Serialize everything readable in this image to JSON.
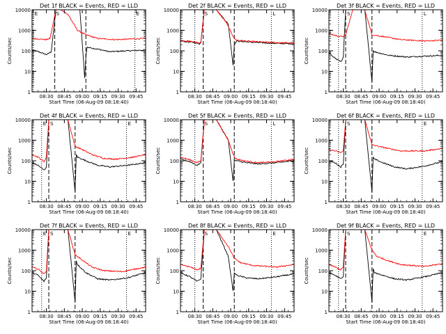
{
  "figure": {
    "xlabel": "Start Time (06-Aug-09 08:18:40)",
    "ylabel": "Counts/sec",
    "ylim": [
      1,
      10000
    ],
    "ytick_labels": [
      "1",
      "10",
      "100",
      "1000",
      "10000"
    ],
    "xtick_labels": [
      "08:30",
      "08:45",
      "09:00",
      "09:15",
      "09:30",
      "09:45"
    ],
    "xrange_min": [
      0,
      95
    ],
    "scale": "log",
    "colors": {
      "events": "#000000",
      "lld": "#ff0000",
      "frame": "#000000"
    }
  },
  "chart_data": [
    {
      "type": "line",
      "title": "Det 1f BLACK = Events, RED = LLD",
      "markers": [
        {
          "label": "E",
          "t": 1,
          "style": "dotted"
        },
        {
          "label": "S",
          "t": 19,
          "style": "dashed"
        },
        {
          "label": "",
          "t": 45,
          "style": "dashed"
        },
        {
          "label": "E",
          "t": 86,
          "style": "dotted"
        }
      ],
      "series": [
        {
          "color": "#000000",
          "t": [
            0,
            8,
            12,
            13,
            16,
            20,
            24,
            30,
            40,
            44,
            45,
            46,
            55,
            65,
            80,
            95
          ],
          "values": [
            110,
            80,
            65,
            70,
            90,
            10000,
            10000,
            10000,
            10000,
            5,
            50,
            150,
            120,
            90,
            100,
            110
          ]
        },
        {
          "color": "#ff0000",
          "t": [
            0,
            12,
            15,
            20,
            24,
            30,
            38,
            45,
            55,
            70,
            85,
            95
          ],
          "values": [
            400,
            350,
            400,
            10000,
            10000,
            6000,
            1000,
            600,
            400,
            350,
            380,
            400
          ]
        }
      ]
    },
    {
      "type": "line",
      "title": "Det 2f BLACK = Events, RED = LLD",
      "markers": [
        {
          "label": "",
          "t": 12,
          "style": "dotted"
        },
        {
          "label": "S",
          "t": 19,
          "style": "dashed"
        },
        {
          "label": "",
          "t": 45,
          "style": "dashed"
        },
        {
          "label": "L",
          "t": 76,
          "style": "dotted"
        }
      ],
      "series": [
        {
          "color": "#000000",
          "t": [
            0,
            10,
            16,
            17,
            20,
            30,
            40,
            44,
            45,
            47,
            60,
            80,
            95
          ],
          "values": [
            300,
            260,
            220,
            250,
            10000,
            10000,
            2000,
            20,
            200,
            300,
            260,
            230,
            220
          ]
        },
        {
          "color": "#ff0000",
          "t": [
            0,
            10,
            16,
            17,
            20,
            30,
            38,
            45,
            47,
            60,
            80,
            95
          ],
          "values": [
            320,
            280,
            240,
            260,
            10000,
            10000,
            2500,
            400,
            330,
            280,
            250,
            240
          ]
        }
      ]
    },
    {
      "type": "line",
      "title": "Det 3f BLACK = Events, RED = LLD",
      "markers": [
        {
          "label": "",
          "t": 8,
          "style": "dotted"
        },
        {
          "label": "S",
          "t": 14,
          "style": "dashed"
        },
        {
          "label": "",
          "t": 36,
          "style": "dashed"
        },
        {
          "label": "L",
          "t": 78,
          "style": "dotted"
        }
      ],
      "series": [
        {
          "color": "#000000",
          "t": [
            0,
            6,
            10,
            12,
            14,
            30,
            36,
            37,
            38,
            50,
            65,
            80,
            95
          ],
          "values": [
            80,
            40,
            30,
            45,
            10000,
            10000,
            3,
            100,
            90,
            60,
            50,
            55,
            60
          ]
        },
        {
          "color": "#ff0000",
          "t": [
            0,
            8,
            12,
            14,
            20,
            30,
            36,
            45,
            60,
            80,
            95
          ],
          "values": [
            700,
            500,
            500,
            600,
            10000,
            10000,
            600,
            500,
            350,
            300,
            330
          ]
        }
      ]
    },
    {
      "type": "line",
      "title": "Det 4f BLACK = Events, RED = LLD",
      "markers": [
        {
          "label": "E",
          "t": 8,
          "style": "dotted"
        },
        {
          "label": "S",
          "t": 14,
          "style": "dashed"
        },
        {
          "label": "",
          "t": 36,
          "style": "dashed"
        },
        {
          "label": "E",
          "t": 79,
          "style": "dotted"
        }
      ],
      "series": [
        {
          "color": "#000000",
          "t": [
            0,
            5,
            10,
            12,
            14,
            30,
            36,
            37,
            38,
            45,
            55,
            65,
            80,
            95
          ],
          "values": [
            80,
            60,
            35,
            50,
            10000,
            10000,
            3,
            200,
            150,
            100,
            60,
            50,
            60,
            80
          ]
        },
        {
          "color": "#ff0000",
          "t": [
            0,
            5,
            10,
            12,
            14,
            30,
            36,
            40,
            50,
            60,
            70,
            85,
            95
          ],
          "values": [
            200,
            150,
            90,
            150,
            10000,
            10000,
            500,
            400,
            200,
            130,
            120,
            150,
            200
          ]
        }
      ]
    },
    {
      "type": "line",
      "title": "Det 5f BLACK = Events, RED = LLD",
      "markers": [
        {
          "label": "",
          "t": 12,
          "style": "dotted"
        },
        {
          "label": "S",
          "t": 19,
          "style": "dashed"
        },
        {
          "label": "",
          "t": 45,
          "style": "dashed"
        },
        {
          "label": "L",
          "t": 76,
          "style": "dotted"
        }
      ],
      "series": [
        {
          "color": "#000000",
          "t": [
            0,
            8,
            14,
            17,
            20,
            30,
            40,
            44,
            45,
            47,
            55,
            65,
            80,
            95
          ],
          "values": [
            120,
            90,
            60,
            80,
            10000,
            10000,
            1000,
            10,
            100,
            100,
            80,
            70,
            80,
            100
          ]
        },
        {
          "color": "#ff0000",
          "t": [
            0,
            8,
            14,
            17,
            20,
            30,
            40,
            45,
            47,
            55,
            65,
            80,
            95
          ],
          "values": [
            150,
            110,
            80,
            100,
            10000,
            10000,
            1000,
            150,
            120,
            95,
            80,
            90,
            120
          ]
        }
      ]
    },
    {
      "type": "line",
      "title": "Det 6f BLACK = Events, RED = LLD",
      "markers": [
        {
          "label": "",
          "t": 8,
          "style": "dotted"
        },
        {
          "label": "S",
          "t": 14,
          "style": "dashed"
        },
        {
          "label": "",
          "t": 36,
          "style": "dashed"
        },
        {
          "label": "E",
          "t": 78,
          "style": "dotted"
        }
      ],
      "series": [
        {
          "color": "#000000",
          "t": [
            0,
            5,
            10,
            12,
            14,
            30,
            36,
            37,
            38,
            45,
            55,
            65,
            80,
            95
          ],
          "values": [
            100,
            80,
            50,
            70,
            10000,
            10000,
            3,
            150,
            120,
            80,
            50,
            40,
            55,
            90
          ]
        },
        {
          "color": "#ff0000",
          "t": [
            0,
            5,
            10,
            12,
            14,
            30,
            36,
            45,
            60,
            80,
            95
          ],
          "values": [
            350,
            300,
            250,
            300,
            10000,
            10000,
            600,
            450,
            300,
            300,
            400
          ]
        }
      ]
    },
    {
      "type": "line",
      "title": "Det 7f BLACK = Events, RED = LLD",
      "markers": [
        {
          "label": "E",
          "t": 8,
          "style": "dotted"
        },
        {
          "label": "S",
          "t": 14,
          "style": "dashed"
        },
        {
          "label": "",
          "t": 36,
          "style": "dashed"
        },
        {
          "label": "E",
          "t": 79,
          "style": "dotted"
        }
      ],
      "series": [
        {
          "color": "#000000",
          "t": [
            0,
            5,
            10,
            12,
            14,
            30,
            36,
            37,
            38,
            45,
            55,
            65,
            80,
            95
          ],
          "values": [
            80,
            60,
            30,
            45,
            10000,
            10000,
            3,
            300,
            200,
            80,
            40,
            35,
            45,
            80
          ]
        },
        {
          "color": "#ff0000",
          "t": [
            0,
            5,
            10,
            12,
            14,
            30,
            36,
            40,
            50,
            60,
            75,
            95
          ],
          "values": [
            150,
            120,
            70,
            100,
            10000,
            10000,
            600,
            400,
            150,
            100,
            90,
            150
          ]
        }
      ]
    },
    {
      "type": "line",
      "title": "Det 8f BLACK = Events, RED = LLD",
      "markers": [
        {
          "label": "",
          "t": 12,
          "style": "dotted"
        },
        {
          "label": "S",
          "t": 19,
          "style": "dashed"
        },
        {
          "label": "",
          "t": 45,
          "style": "dashed"
        },
        {
          "label": "E",
          "t": 76,
          "style": "dotted"
        }
      ],
      "series": [
        {
          "color": "#000000",
          "t": [
            0,
            8,
            14,
            17,
            20,
            30,
            40,
            44,
            45,
            47,
            55,
            65,
            80,
            95
          ],
          "values": [
            80,
            50,
            30,
            40,
            10000,
            10000,
            500,
            10,
            80,
            60,
            45,
            40,
            50,
            70
          ]
        },
        {
          "color": "#ff0000",
          "t": [
            0,
            8,
            14,
            17,
            20,
            30,
            40,
            45,
            50,
            60,
            80,
            95
          ],
          "values": [
            200,
            150,
            110,
            130,
            10000,
            10000,
            1500,
            400,
            250,
            180,
            150,
            200
          ]
        }
      ]
    },
    {
      "type": "line",
      "title": "Det 9f BLACK = Events, RED = LLD",
      "markers": [
        {
          "label": "",
          "t": 8,
          "style": "dotted"
        },
        {
          "label": "S",
          "t": 14,
          "style": "dashed"
        },
        {
          "label": "",
          "t": 36,
          "style": "dashed"
        },
        {
          "label": "E",
          "t": 78,
          "style": "dotted"
        }
      ],
      "series": [
        {
          "color": "#000000",
          "t": [
            0,
            5,
            10,
            12,
            14,
            30,
            36,
            37,
            38,
            45,
            55,
            65,
            80,
            95
          ],
          "values": [
            80,
            60,
            40,
            50,
            10000,
            10000,
            3,
            120,
            80,
            60,
            40,
            35,
            50,
            80
          ]
        },
        {
          "color": "#ff0000",
          "t": [
            0,
            5,
            10,
            12,
            14,
            30,
            36,
            40,
            50,
            60,
            80,
            95
          ],
          "values": [
            200,
            150,
            110,
            150,
            10000,
            10000,
            1000,
            500,
            300,
            200,
            160,
            220
          ]
        }
      ]
    }
  ]
}
